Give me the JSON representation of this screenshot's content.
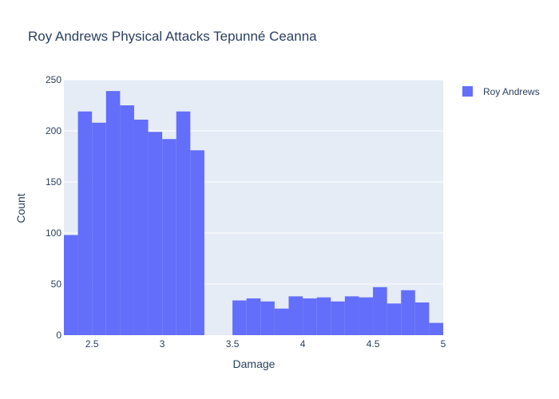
{
  "chart_data": {
    "type": "bar",
    "title": "Roy Andrews Physical Attacks Tepunné Ceanna",
    "xlabel": "Damage",
    "ylabel": "Count",
    "xlim": [
      2.3,
      5.0
    ],
    "ylim": [
      0,
      250
    ],
    "bin_width": 0.1,
    "xticks": [
      {
        "value": 2.5,
        "label": "2.5"
      },
      {
        "value": 3.0,
        "label": "3"
      },
      {
        "value": 3.5,
        "label": "3.5"
      },
      {
        "value": 4.0,
        "label": "4"
      },
      {
        "value": 4.5,
        "label": "4.5"
      },
      {
        "value": 5.0,
        "label": "5"
      }
    ],
    "yticks": [
      {
        "value": 0,
        "label": "0"
      },
      {
        "value": 50,
        "label": "50"
      },
      {
        "value": 100,
        "label": "100"
      },
      {
        "value": 150,
        "label": "150"
      },
      {
        "value": 200,
        "label": "200"
      },
      {
        "value": 250,
        "label": "250"
      }
    ],
    "grid": true,
    "legend_position": "top-right",
    "series": [
      {
        "name": "Roy Andrews",
        "color": "#636efa",
        "bins": [
          {
            "x0": 2.3,
            "count": 98
          },
          {
            "x0": 2.4,
            "count": 219
          },
          {
            "x0": 2.5,
            "count": 208
          },
          {
            "x0": 2.6,
            "count": 239
          },
          {
            "x0": 2.7,
            "count": 225
          },
          {
            "x0": 2.8,
            "count": 211
          },
          {
            "x0": 2.9,
            "count": 199
          },
          {
            "x0": 3.0,
            "count": 192
          },
          {
            "x0": 3.1,
            "count": 219
          },
          {
            "x0": 3.2,
            "count": 181
          },
          {
            "x0": 3.3,
            "count": 0
          },
          {
            "x0": 3.4,
            "count": 0
          },
          {
            "x0": 3.5,
            "count": 34
          },
          {
            "x0": 3.6,
            "count": 36
          },
          {
            "x0": 3.7,
            "count": 33
          },
          {
            "x0": 3.8,
            "count": 26
          },
          {
            "x0": 3.9,
            "count": 38
          },
          {
            "x0": 4.0,
            "count": 36
          },
          {
            "x0": 4.1,
            "count": 37
          },
          {
            "x0": 4.2,
            "count": 33
          },
          {
            "x0": 4.3,
            "count": 38
          },
          {
            "x0": 4.4,
            "count": 37
          },
          {
            "x0": 4.5,
            "count": 47
          },
          {
            "x0": 4.6,
            "count": 31
          },
          {
            "x0": 4.7,
            "count": 44
          },
          {
            "x0": 4.8,
            "count": 32
          },
          {
            "x0": 4.9,
            "count": 12
          }
        ]
      }
    ],
    "colors": {
      "plot_background": "#e5ecf6",
      "gridline": "#ffffff",
      "text": "#2a3f5f"
    }
  }
}
